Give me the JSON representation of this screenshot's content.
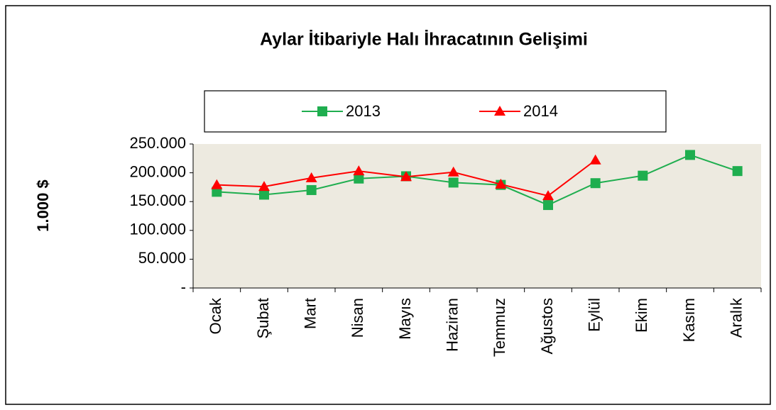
{
  "chart_data": {
    "type": "line",
    "title": "Aylar İtibariyle Halı İhracatının Gelişimi",
    "y_label": "1.000 $",
    "categories": [
      "Ocak",
      "Şubat",
      "Mart",
      "Nisan",
      "Mayıs",
      "Haziran",
      "Temmuz",
      "Ağustos",
      "Eylül",
      "Ekim",
      "Kasım",
      "Aralık"
    ],
    "series": [
      {
        "name": "2013",
        "color": "#1fae4f",
        "marker": "square",
        "values": [
          167000,
          162000,
          170000,
          190000,
          194000,
          183000,
          179000,
          144000,
          182000,
          195000,
          231000,
          203000
        ]
      },
      {
        "name": "2014",
        "color": "#ff0000",
        "marker": "triangle",
        "values": [
          179000,
          176000,
          191000,
          203000,
          193000,
          201000,
          180000,
          160000,
          222000,
          null,
          null,
          null
        ]
      }
    ],
    "ylim": [
      0,
      250000
    ],
    "yticks": [
      {
        "value": 0,
        "label": "-"
      },
      {
        "value": 50000,
        "label": "50.000"
      },
      {
        "value": 100000,
        "label": "100.000"
      },
      {
        "value": 150000,
        "label": "150.000"
      },
      {
        "value": 200000,
        "label": "200.000"
      },
      {
        "value": 250000,
        "label": "250.000"
      }
    ],
    "legend": "top",
    "plot_background": "#edeae0"
  }
}
